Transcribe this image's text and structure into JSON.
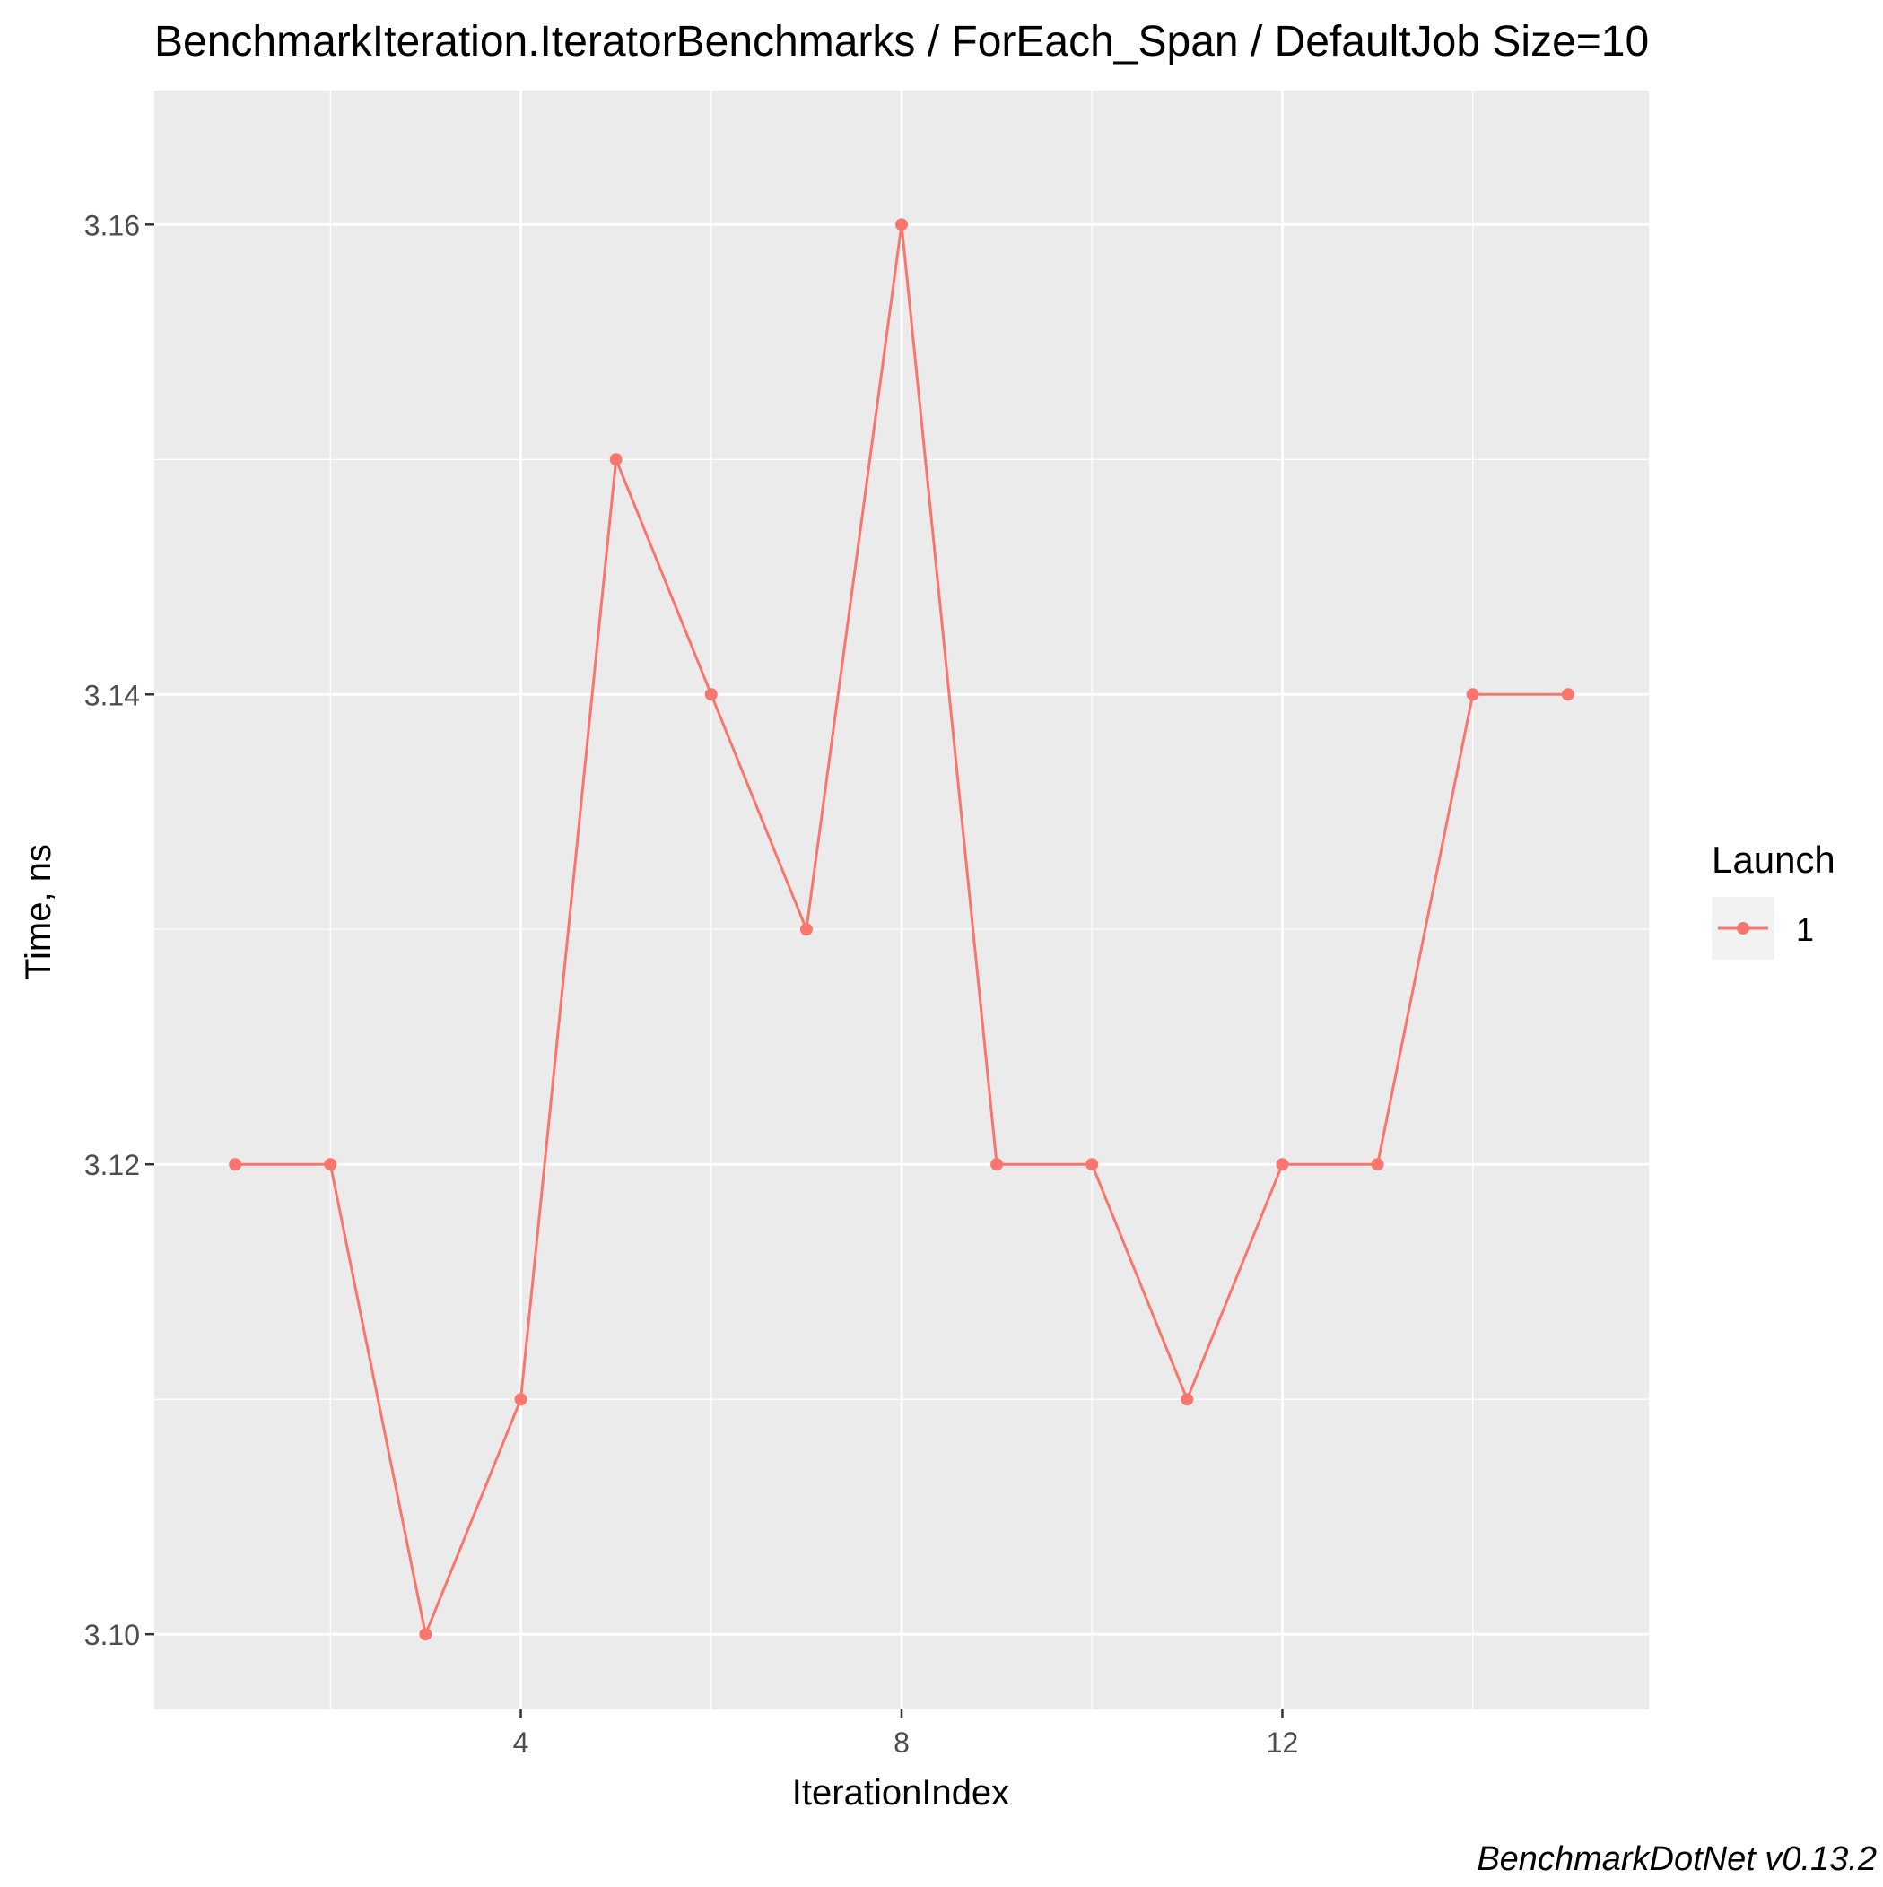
{
  "chart_data": {
    "type": "line",
    "title": "BenchmarkIteration.IteratorBenchmarks / ForEach_Span / DefaultJob Size=10",
    "xlabel": "IterationIndex",
    "ylabel": "Time, ns",
    "caption": "BenchmarkDotNet v0.13.2",
    "xlim": [
      0.15,
      15.85
    ],
    "ylim": [
      3.0968,
      3.1657
    ],
    "x_ticks": [
      4,
      8,
      12
    ],
    "x_tick_labels": [
      "4",
      "8",
      "12"
    ],
    "x_minor_ticks": [
      2,
      6,
      10,
      14
    ],
    "y_ticks": [
      3.1,
      3.12,
      3.14,
      3.16
    ],
    "y_tick_labels": [
      "3.10",
      "3.12",
      "3.14",
      "3.16"
    ],
    "y_minor_ticks": [
      3.11,
      3.13,
      3.15
    ],
    "grid": true,
    "legend": {
      "title": "Launch",
      "position": "right",
      "entries": [
        "1"
      ]
    },
    "colors": {
      "series": "#F8766D",
      "panel_background": "#EBEBEB",
      "grid": "#FFFFFF",
      "text": "#000000",
      "tick_text": "#4D4D4D",
      "legend_key_background": "#F2F2F2"
    },
    "series": [
      {
        "name": "1",
        "x": [
          1,
          2,
          3,
          4,
          5,
          6,
          7,
          8,
          9,
          10,
          11,
          12,
          13,
          14,
          15
        ],
        "values": [
          3.12,
          3.12,
          3.1,
          3.11,
          3.15,
          3.14,
          3.13,
          3.16,
          3.12,
          3.12,
          3.11,
          3.12,
          3.12,
          3.14,
          3.14
        ]
      }
    ]
  }
}
